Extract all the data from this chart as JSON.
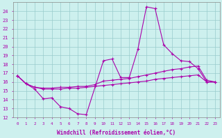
{
  "xlabel": "Windchill (Refroidissement éolien,°C)",
  "bg_color": "#cdf0ee",
  "grid_color": "#99cccc",
  "line_color": "#aa00aa",
  "xlim": [
    -0.5,
    23.5
  ],
  "ylim": [
    12,
    25
  ],
  "yticks": [
    12,
    13,
    14,
    15,
    16,
    17,
    18,
    19,
    20,
    21,
    22,
    23,
    24
  ],
  "xticks": [
    0,
    1,
    2,
    3,
    4,
    5,
    6,
    7,
    8,
    9,
    10,
    11,
    12,
    13,
    14,
    15,
    16,
    17,
    18,
    19,
    20,
    21,
    22,
    23
  ],
  "series1_x": [
    0,
    1,
    2,
    3,
    4,
    5,
    6,
    7,
    8,
    10,
    11,
    12,
    13,
    14,
    15,
    16,
    17,
    18,
    19,
    20,
    21,
    22,
    23
  ],
  "series1_y": [
    16.7,
    15.8,
    15.2,
    14.1,
    14.2,
    13.2,
    13.0,
    12.4,
    12.3,
    18.4,
    18.6,
    16.5,
    16.5,
    19.7,
    24.5,
    24.3,
    20.2,
    19.2,
    18.4,
    18.3,
    17.5,
    16.0,
    16.0
  ],
  "series2_x": [
    0,
    1,
    2,
    3,
    4,
    5,
    6,
    7,
    8,
    9,
    10,
    11,
    12,
    13,
    14,
    15,
    16,
    17,
    18,
    19,
    20,
    21,
    22,
    23
  ],
  "series2_y": [
    16.7,
    15.8,
    15.4,
    15.3,
    15.3,
    15.4,
    15.4,
    15.5,
    15.5,
    15.7,
    16.1,
    16.2,
    16.3,
    16.4,
    16.6,
    16.8,
    17.0,
    17.2,
    17.4,
    17.5,
    17.7,
    17.8,
    16.2,
    16.0
  ],
  "series3_x": [
    0,
    1,
    2,
    3,
    4,
    5,
    6,
    7,
    8,
    9,
    10,
    11,
    12,
    13,
    14,
    15,
    16,
    17,
    18,
    19,
    20,
    21,
    22,
    23
  ],
  "series3_y": [
    16.7,
    15.8,
    15.4,
    15.2,
    15.2,
    15.2,
    15.3,
    15.3,
    15.4,
    15.5,
    15.6,
    15.7,
    15.8,
    15.9,
    16.0,
    16.1,
    16.3,
    16.4,
    16.5,
    16.6,
    16.7,
    16.8,
    16.0,
    16.0
  ]
}
